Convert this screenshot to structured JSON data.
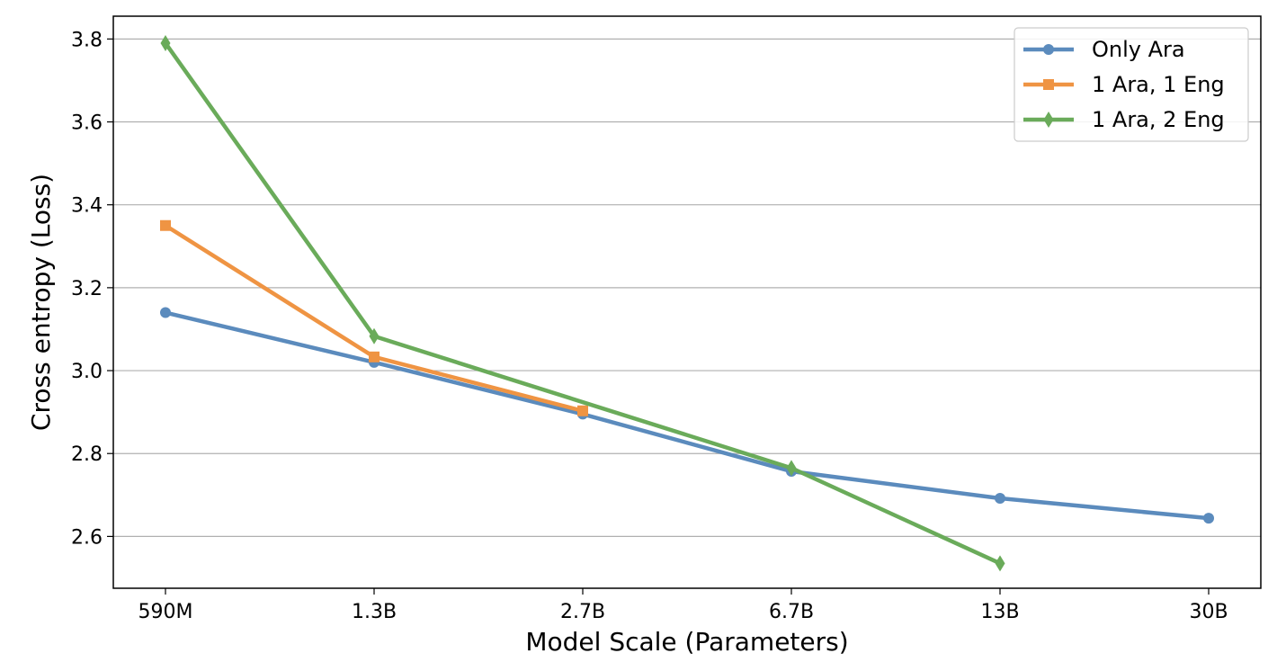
{
  "chart_data": {
    "type": "line",
    "categories": [
      "590M",
      "1.3B",
      "2.7B",
      "6.7B",
      "13B",
      "30B"
    ],
    "series": [
      {
        "name": "Only Ara",
        "color": "#5b8bbd",
        "marker": "circle",
        "values": [
          3.14,
          3.02,
          2.895,
          2.757,
          2.692,
          2.644
        ]
      },
      {
        "name": "1 Ara, 1 Eng",
        "color": "#ef9443",
        "marker": "square",
        "values": [
          3.35,
          3.033,
          2.903,
          null,
          null,
          null
        ]
      },
      {
        "name": "1 Ara, 2 Eng",
        "color": "#6aab5a",
        "marker": "diamond",
        "values": [
          3.79,
          3.083,
          null,
          2.765,
          2.535,
          null
        ]
      }
    ],
    "yticks": [
      2.6,
      2.8,
      3.0,
      3.2,
      3.4,
      3.6,
      3.8
    ],
    "ytick_labels": [
      "2.6",
      "2.8",
      "3.0",
      "3.2",
      "3.4",
      "3.6",
      "3.8"
    ],
    "ylim": [
      2.475,
      3.855
    ],
    "xlabel": "Model Scale (Parameters)",
    "ylabel": "Cross entropy (Loss)",
    "grid": "horizontal",
    "legend_position": "top-right"
  }
}
